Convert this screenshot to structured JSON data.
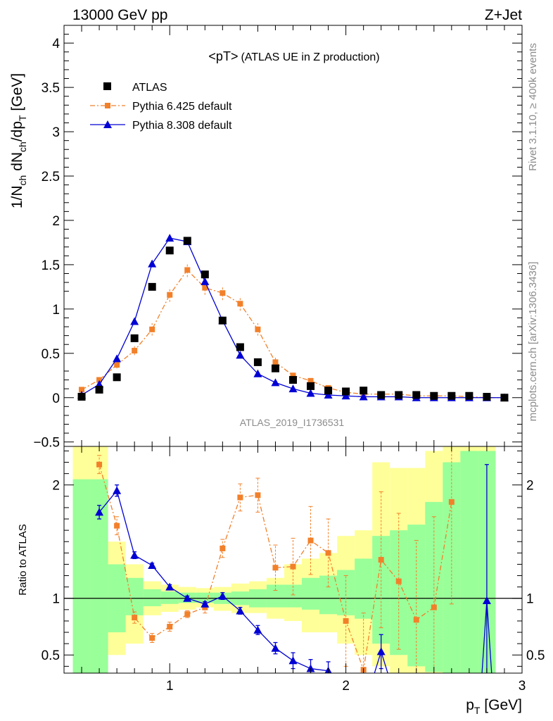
{
  "header": {
    "left": "13000 GeV pp",
    "right": "Z+Jet"
  },
  "side_labels": {
    "rivet": "Rivet 3.1.10, ≥ 400k events",
    "mcplots": "mcplots.cern.ch [arXiv:1306.3436]"
  },
  "chart_data": [
    {
      "type": "line",
      "title": "<pT>",
      "subtitle": "(ATLAS UE in Z production)",
      "watermark": "ATLAS_2019_I1736531",
      "ylabel_main": "1/N",
      "ylabel_sub1": "ch",
      "ylabel_mid": " dN",
      "ylabel_sub2": "ch",
      "ylabel_end": "/dp",
      "ylabel_sub3": "T",
      "ylabel_unit": " [GeV]",
      "ylim": [
        -0.55,
        4.2
      ],
      "yticks": [
        -0.5,
        0,
        0.5,
        1,
        1.5,
        2,
        2.5,
        3,
        3.5,
        4
      ],
      "ytick_labels": [
        "−0.5",
        "0",
        "0.5",
        "1",
        "1.5",
        "2",
        "2.5",
        "3",
        "3.5",
        "4"
      ],
      "xlim": [
        0.4,
        3.0
      ],
      "legend_position": "top-left",
      "series": [
        {
          "name": "ATLAS",
          "marker": "square",
          "color": "#000000",
          "x": [
            0.5,
            0.6,
            0.7,
            0.8,
            0.9,
            1.0,
            1.1,
            1.2,
            1.3,
            1.4,
            1.5,
            1.6,
            1.7,
            1.8,
            1.9,
            2.0,
            2.1,
            2.2,
            2.3,
            2.4,
            2.5,
            2.6,
            2.7,
            2.8,
            2.9
          ],
          "y": [
            0.01,
            0.09,
            0.23,
            0.67,
            1.25,
            1.66,
            1.77,
            1.39,
            0.87,
            0.57,
            0.4,
            0.33,
            0.2,
            0.13,
            0.08,
            0.07,
            0.08,
            0.03,
            0.03,
            0.03,
            0.02,
            0.02,
            0.02,
            0.01,
            0.0
          ]
        },
        {
          "name": "Pythia 6.425 default",
          "marker": "square-small",
          "color": "#f2802a",
          "x": [
            0.5,
            0.6,
            0.7,
            0.8,
            0.9,
            1.0,
            1.1,
            1.2,
            1.3,
            1.4,
            1.5,
            1.6,
            1.7,
            1.8,
            1.9,
            2.0,
            2.1,
            2.2,
            2.3,
            2.4,
            2.5,
            2.6,
            2.7,
            2.8,
            2.9
          ],
          "y": [
            0.09,
            0.2,
            0.37,
            0.53,
            0.77,
            1.16,
            1.44,
            1.24,
            1.18,
            1.06,
            0.77,
            0.4,
            0.25,
            0.19,
            0.11,
            0.06,
            0.04,
            0.04,
            0.04,
            0.02,
            0.02,
            0.02,
            0.01,
            0.0,
            0.0
          ],
          "err": [
            0.02,
            0.03,
            0.04,
            0.05,
            0.07,
            0.08,
            0.08,
            0.08,
            0.08,
            0.08,
            0.07,
            0.05,
            0.04,
            0.03,
            0.02,
            0.02,
            0.02,
            0.01,
            0.01,
            0.01,
            0.01,
            0.01,
            0.01,
            0.0,
            0.0
          ]
        },
        {
          "name": "Pythia 8.308 default",
          "marker": "triangle",
          "color": "#0000d4",
          "x": [
            0.5,
            0.6,
            0.7,
            0.8,
            0.9,
            1.0,
            1.1,
            1.2,
            1.3,
            1.4,
            1.5,
            1.6,
            1.7,
            1.8,
            1.9,
            2.0,
            2.1,
            2.2,
            2.3,
            2.4,
            2.5,
            2.6,
            2.7,
            2.8,
            2.9
          ],
          "y": [
            0.03,
            0.15,
            0.44,
            0.86,
            1.51,
            1.8,
            1.76,
            1.31,
            0.87,
            0.48,
            0.27,
            0.17,
            0.1,
            0.05,
            0.03,
            0.02,
            0.01,
            0.01,
            0.01,
            0.0,
            0.0,
            0.0,
            0.0,
            0.0,
            0.0
          ],
          "err": [
            0.01,
            0.02,
            0.02,
            0.02,
            0.03,
            0.03,
            0.03,
            0.03,
            0.02,
            0.02,
            0.01,
            0.01,
            0.01,
            0.01,
            0.0,
            0.0,
            0.0,
            0.0,
            0.0,
            0.0,
            0.0,
            0.0,
            0.0,
            0.0,
            0.0
          ]
        }
      ]
    },
    {
      "type": "line",
      "ylabel": "Ratio to ATLAS",
      "xlabel_main": "p",
      "xlabel_sub": "T",
      "xlabel_unit": " [GeV]",
      "xlim": [
        0.4,
        3.0
      ],
      "xticks": [
        1,
        2,
        3
      ],
      "xtick_labels": [
        "1",
        "2",
        "3"
      ],
      "ylim": [
        0.34,
        2.34
      ],
      "yticks": [
        0.5,
        1,
        2
      ],
      "ytick_labels": [
        "0.5",
        "1",
        "2"
      ],
      "reference_line": 1,
      "uncertainty_bands": {
        "colors": {
          "outer": "#ffff99",
          "inner": "#99ff99"
        },
        "edges": [
          0.45,
          0.55,
          0.65,
          0.75,
          0.85,
          0.95,
          1.05,
          1.15,
          1.25,
          1.35,
          1.45,
          1.55,
          1.65,
          1.75,
          1.85,
          1.95,
          2.05,
          2.15,
          2.25,
          2.35,
          2.45,
          2.55,
          2.65,
          2.75,
          2.85
        ],
        "outer_lo": [
          0.0,
          0.0,
          0.5,
          0.6,
          0.85,
          0.88,
          0.9,
          0.92,
          0.89,
          0.87,
          0.87,
          0.82,
          0.8,
          0.7,
          0.7,
          0.6,
          0.5,
          0.4,
          0.2,
          0.2,
          0.15,
          0.12,
          0.1,
          0.1
        ],
        "outer_hi": [
          2.5,
          2.5,
          1.5,
          1.3,
          1.15,
          1.12,
          1.1,
          1.09,
          1.1,
          1.13,
          1.15,
          1.18,
          1.3,
          1.35,
          1.4,
          1.55,
          1.6,
          2.2,
          2.15,
          2.15,
          2.3,
          2.5,
          2.6,
          2.6
        ],
        "inner_lo": [
          0.0,
          0.0,
          0.7,
          0.85,
          0.93,
          0.95,
          0.96,
          0.96,
          0.95,
          0.94,
          0.92,
          0.92,
          0.92,
          0.9,
          0.86,
          0.85,
          0.82,
          0.6,
          0.5,
          0.4,
          0.35,
          0.3,
          0.25,
          0.25
        ],
        "inner_hi": [
          2.05,
          2.05,
          1.3,
          1.18,
          1.08,
          1.06,
          1.05,
          1.05,
          1.05,
          1.06,
          1.08,
          1.12,
          1.12,
          1.18,
          1.2,
          1.25,
          1.35,
          1.55,
          1.6,
          1.65,
          1.85,
          2.2,
          2.3,
          2.3
        ]
      },
      "series": [
        {
          "name": "Pythia 6.425 default",
          "color": "#f2802a",
          "x": [
            0.6,
            0.7,
            0.8,
            0.9,
            1.0,
            1.1,
            1.2,
            1.3,
            1.4,
            1.5,
            1.6,
            1.7,
            1.8,
            1.9,
            2.0,
            2.1,
            2.2,
            2.3,
            2.4,
            2.5,
            2.6
          ],
          "y": [
            2.18,
            1.64,
            0.83,
            0.65,
            0.75,
            0.86,
            0.92,
            1.44,
            1.89,
            1.91,
            1.27,
            1.28,
            1.51,
            1.4,
            0.8,
            0.37,
            1.34,
            1.15,
            0.81,
            0.92,
            1.85
          ],
          "err": [
            0.08,
            0.08,
            0.05,
            0.04,
            0.04,
            0.03,
            0.05,
            0.08,
            0.12,
            0.15,
            0.2,
            0.25,
            0.3,
            0.3,
            0.4,
            0.5,
            0.6,
            0.6,
            0.7,
            0.8,
            0.9
          ]
        },
        {
          "name": "Pythia 8.308 default",
          "color": "#0000d4",
          "x": [
            0.6,
            0.7,
            0.8,
            0.9,
            1.0,
            1.1,
            1.2,
            1.3,
            1.4,
            1.5,
            1.6,
            1.7,
            1.8,
            1.9,
            2.2,
            2.8
          ],
          "y": [
            1.76,
            1.95,
            1.38,
            1.29,
            1.1,
            1.0,
            0.95,
            1.02,
            0.89,
            0.72,
            0.56,
            0.45,
            0.38,
            0.36,
            0.53,
            0.98
          ],
          "err": [
            0.06,
            0.05,
            0.03,
            0.02,
            0.02,
            0.02,
            0.02,
            0.03,
            0.03,
            0.04,
            0.05,
            0.07,
            0.08,
            0.08,
            0.15,
            1.2
          ]
        }
      ]
    }
  ]
}
